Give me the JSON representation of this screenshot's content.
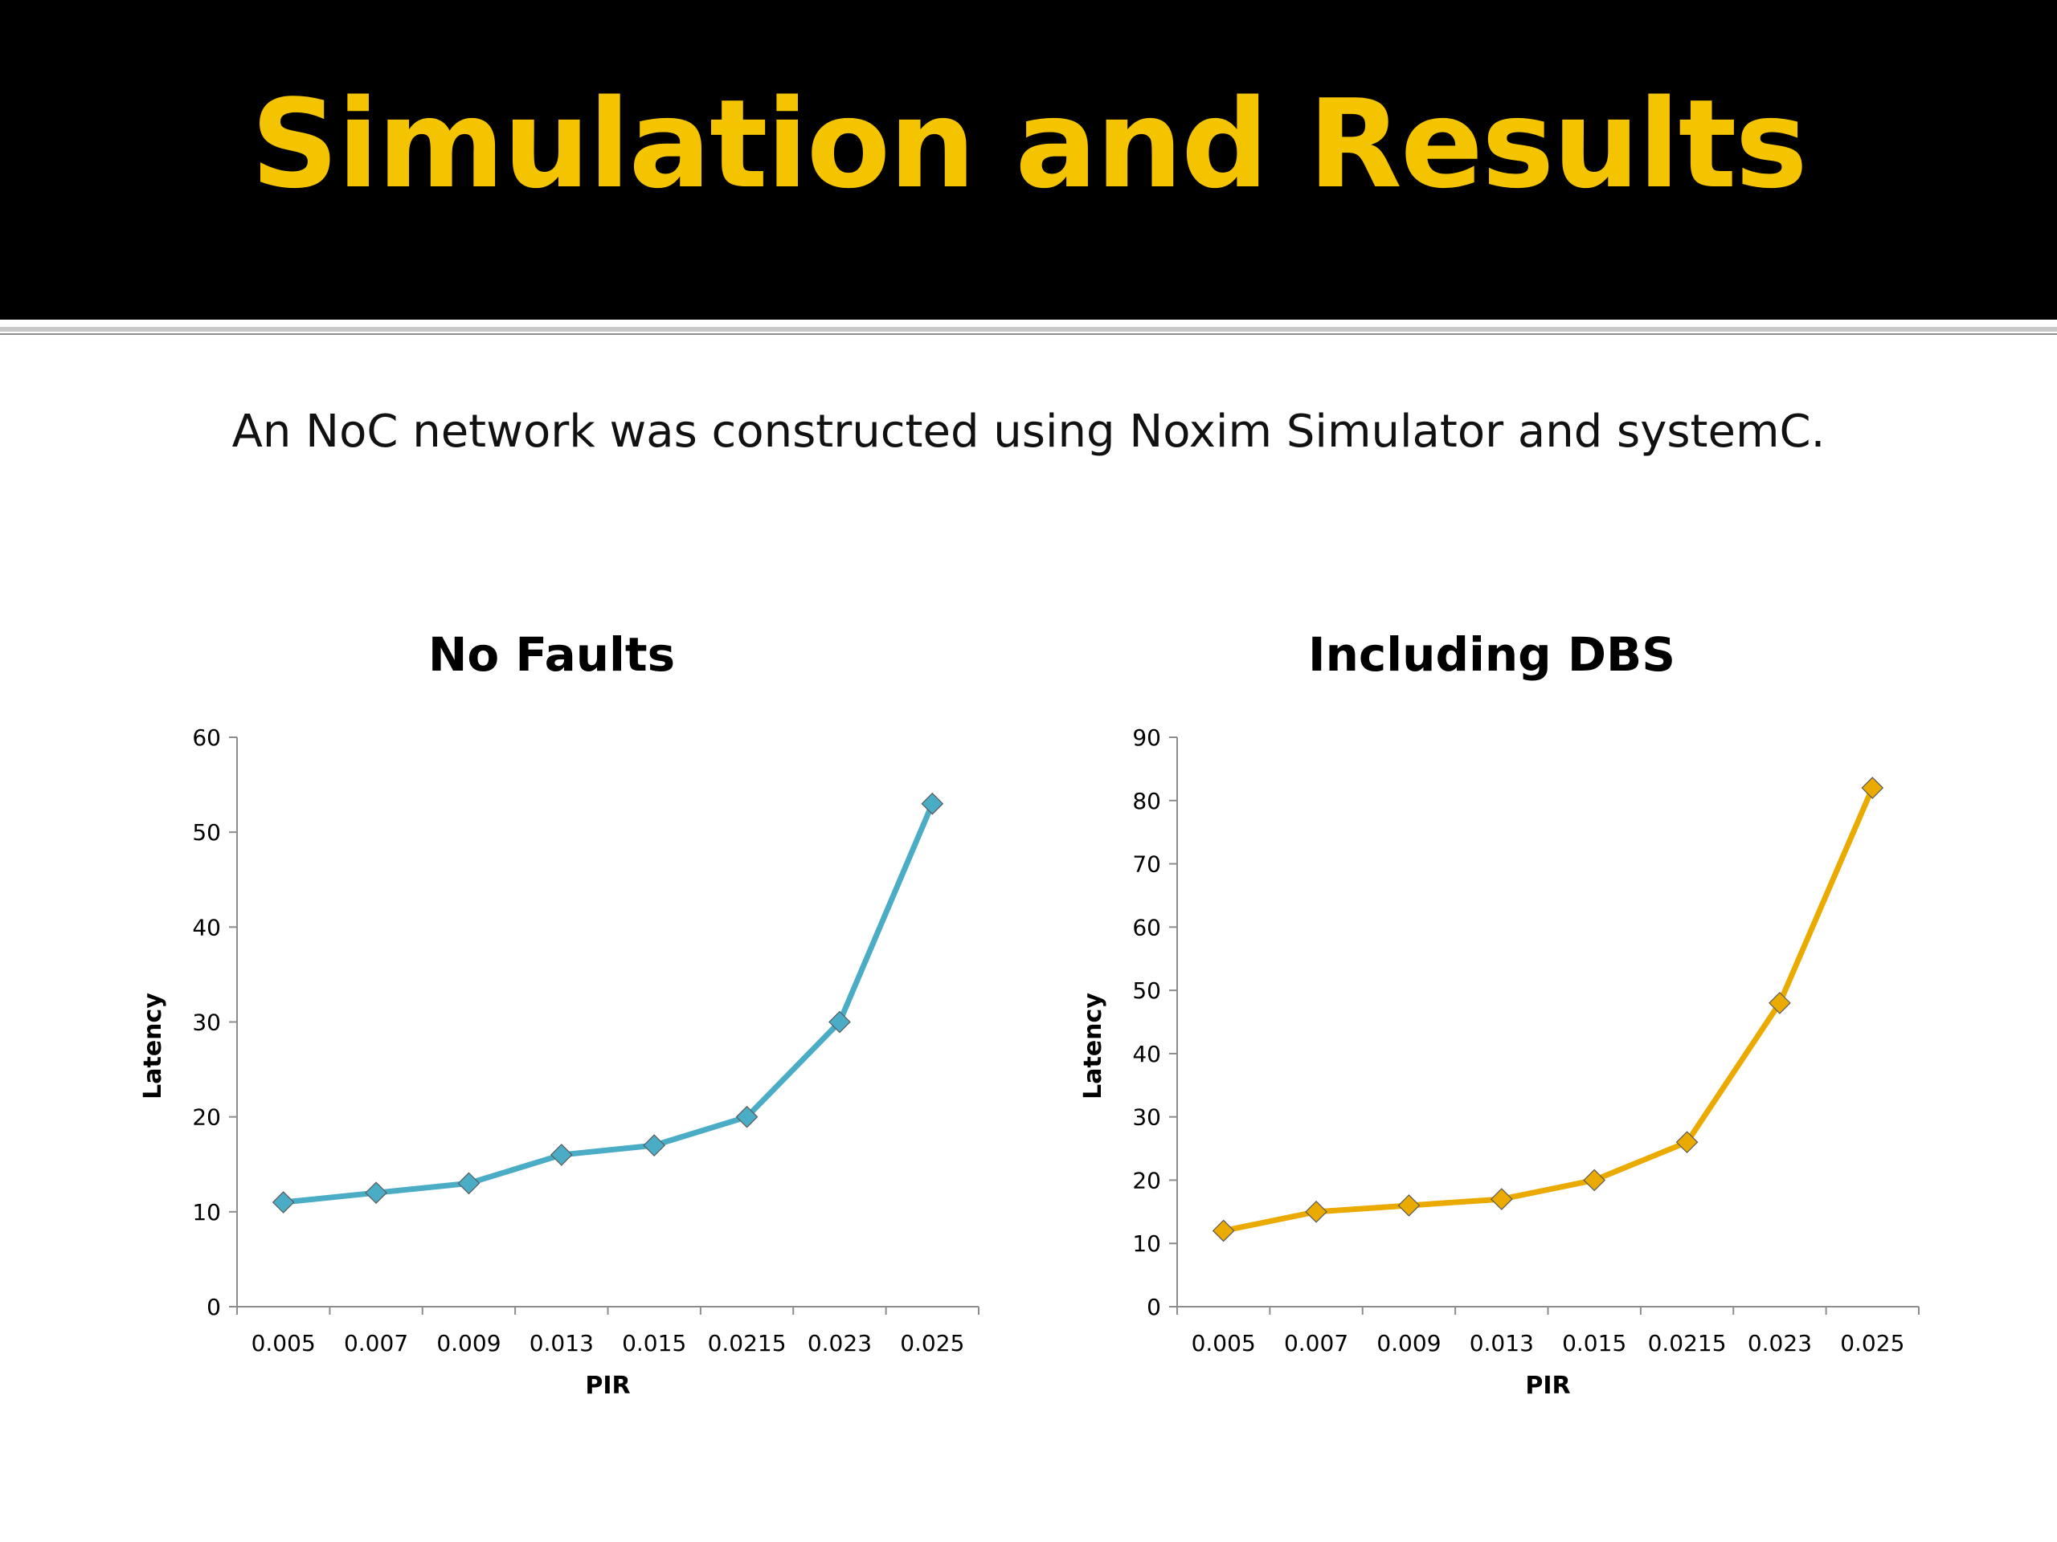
{
  "slide": {
    "title": "Simulation and Results",
    "subtitle": "An NoC network was constructed using Noxim Simulator and systemC."
  },
  "colors": {
    "title_bar": "#000000",
    "title_text": "#f5c400"
  },
  "chart_data": [
    {
      "type": "line",
      "title": "No Faults",
      "xlabel": "PIR",
      "ylabel": "Latency",
      "categories": [
        "0.005",
        "0.007",
        "0.009",
        "0.013",
        "0.015",
        "0.0215",
        "0.023",
        "0.025"
      ],
      "series": [
        {
          "values": [
            11,
            12,
            13,
            16,
            17,
            20,
            30,
            53
          ],
          "color": "#4bacc6"
        }
      ],
      "ylim": [
        0,
        60
      ],
      "yticks": [
        0,
        10,
        20,
        30,
        40,
        50,
        60
      ],
      "marker": "diamond",
      "grid": false,
      "legend": "none"
    },
    {
      "type": "line",
      "title": "Including DBS",
      "xlabel": "PIR",
      "ylabel": "Latency",
      "categories": [
        "0.005",
        "0.007",
        "0.009",
        "0.013",
        "0.015",
        "0.0215",
        "0.023",
        "0.025"
      ],
      "series": [
        {
          "values": [
            12,
            15,
            16,
            17,
            20,
            26,
            48,
            82
          ],
          "color": "#eaaa00"
        }
      ],
      "ylim": [
        0,
        90
      ],
      "yticks": [
        0,
        10,
        20,
        30,
        40,
        50,
        60,
        70,
        80,
        90
      ],
      "marker": "diamond",
      "grid": false,
      "legend": "none"
    }
  ]
}
